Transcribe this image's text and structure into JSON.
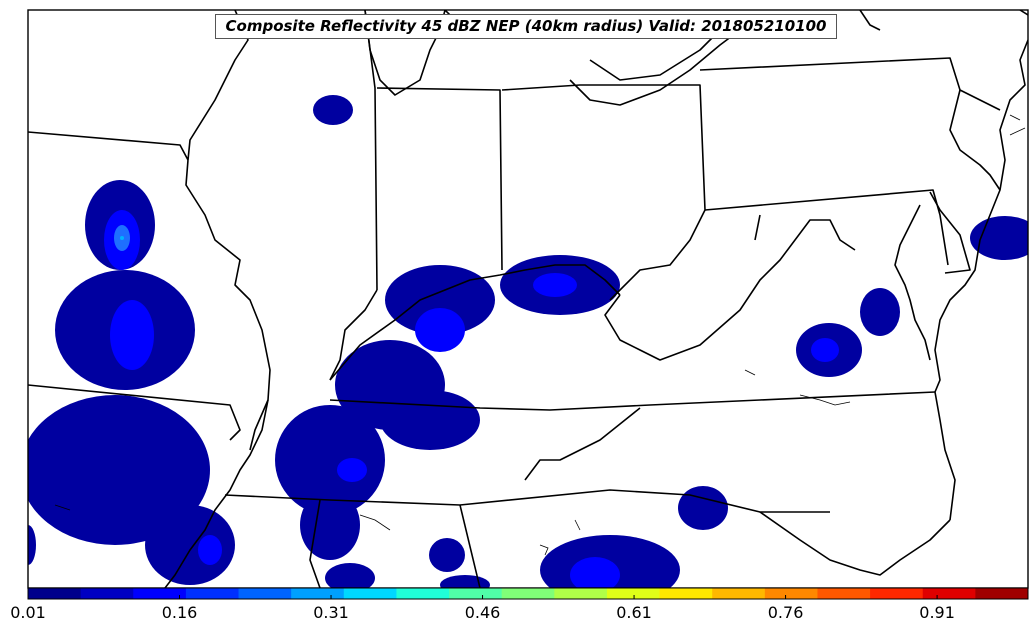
{
  "title": "Composite Reflectivity 45 dBZ NEP (40km radius) Valid: 201805210100",
  "colorbar": {
    "tick_labels": [
      "0.01",
      "0.16",
      "0.31",
      "0.46",
      "0.61",
      "0.76",
      "0.91"
    ],
    "min": 0.01,
    "max": 1.0,
    "colors": [
      "#00008b",
      "#0000c2",
      "#0000ff",
      "#0030ff",
      "#0064ff",
      "#00a0ff",
      "#00d8ff",
      "#20ffd8",
      "#50ffa8",
      "#80ff78",
      "#b0ff48",
      "#e0ff18",
      "#ffe800",
      "#ffb800",
      "#ff8800",
      "#ff5800",
      "#ff2800",
      "#e00000",
      "#a00000"
    ]
  },
  "legend_colors": {
    "low": "#0000a0",
    "mid": "#0000ff",
    "high": "#1e6fff",
    "peak": "#00b4ff"
  }
}
